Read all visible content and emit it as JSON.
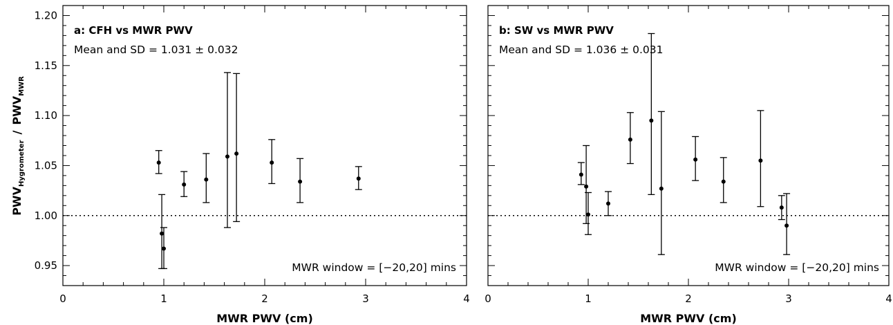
{
  "chart_data": [
    {
      "type": "scatter",
      "panel_title": "a: CFH vs MWR PWV",
      "stats_label": "Mean and SD = 1.031 ± 0.032",
      "window_label": "MWR window = [−20,20] mins",
      "xlabel": "MWR PWV (cm)",
      "ylabel_main": "PWV",
      "ylabel_sub_num": "Hygrometer",
      "ylabel_sep": "/",
      "ylabel_sub_den": "MWR",
      "xlim": [
        0,
        4
      ],
      "ylim": [
        0.93,
        1.21
      ],
      "xticks": [
        "0",
        "1",
        "2",
        "3",
        "4"
      ],
      "yticks": [
        "0.95",
        "1.00",
        "1.05",
        "1.10",
        "1.15",
        "1.20"
      ],
      "reference_y": 1.0,
      "points": [
        {
          "x": 0.95,
          "y": 1.053,
          "lo": 1.042,
          "hi": 1.065
        },
        {
          "x": 0.98,
          "y": 0.982,
          "lo": 0.947,
          "hi": 1.021
        },
        {
          "x": 1.0,
          "y": 0.967,
          "lo": 0.947,
          "hi": 0.988
        },
        {
          "x": 1.2,
          "y": 1.031,
          "lo": 1.019,
          "hi": 1.044
        },
        {
          "x": 1.42,
          "y": 1.036,
          "lo": 1.013,
          "hi": 1.062
        },
        {
          "x": 1.63,
          "y": 1.059,
          "lo": 0.988,
          "hi": 1.143
        },
        {
          "x": 1.72,
          "y": 1.062,
          "lo": 0.994,
          "hi": 1.142
        },
        {
          "x": 2.07,
          "y": 1.053,
          "lo": 1.032,
          "hi": 1.076
        },
        {
          "x": 2.35,
          "y": 1.034,
          "lo": 1.013,
          "hi": 1.057
        },
        {
          "x": 2.93,
          "y": 1.037,
          "lo": 1.026,
          "hi": 1.049
        }
      ]
    },
    {
      "type": "scatter",
      "panel_title": "b: SW vs MWR PWV",
      "stats_label": "Mean and SD = 1.036 ± 0.031",
      "window_label": "MWR window = [−20,20] mins",
      "xlabel": "MWR PWV (cm)",
      "xlim": [
        0,
        4
      ],
      "ylim": [
        0.93,
        1.21
      ],
      "xticks": [
        "0",
        "1",
        "2",
        "3",
        "4"
      ],
      "reference_y": 1.0,
      "points": [
        {
          "x": 0.93,
          "y": 1.041,
          "lo": 1.031,
          "hi": 1.053
        },
        {
          "x": 0.98,
          "y": 1.029,
          "lo": 0.992,
          "hi": 1.07
        },
        {
          "x": 1.0,
          "y": 1.001,
          "lo": 0.981,
          "hi": 1.023
        },
        {
          "x": 1.2,
          "y": 1.012,
          "lo": 1.0,
          "hi": 1.024
        },
        {
          "x": 1.42,
          "y": 1.076,
          "lo": 1.052,
          "hi": 1.103
        },
        {
          "x": 1.63,
          "y": 1.095,
          "lo": 1.021,
          "hi": 1.182
        },
        {
          "x": 1.73,
          "y": 1.027,
          "lo": 0.961,
          "hi": 1.104
        },
        {
          "x": 2.07,
          "y": 1.056,
          "lo": 1.035,
          "hi": 1.079
        },
        {
          "x": 2.35,
          "y": 1.034,
          "lo": 1.013,
          "hi": 1.058
        },
        {
          "x": 2.72,
          "y": 1.055,
          "lo": 1.009,
          "hi": 1.105
        },
        {
          "x": 2.93,
          "y": 1.008,
          "lo": 0.996,
          "hi": 1.02
        },
        {
          "x": 2.98,
          "y": 0.99,
          "lo": 0.961,
          "hi": 1.022
        }
      ]
    }
  ]
}
